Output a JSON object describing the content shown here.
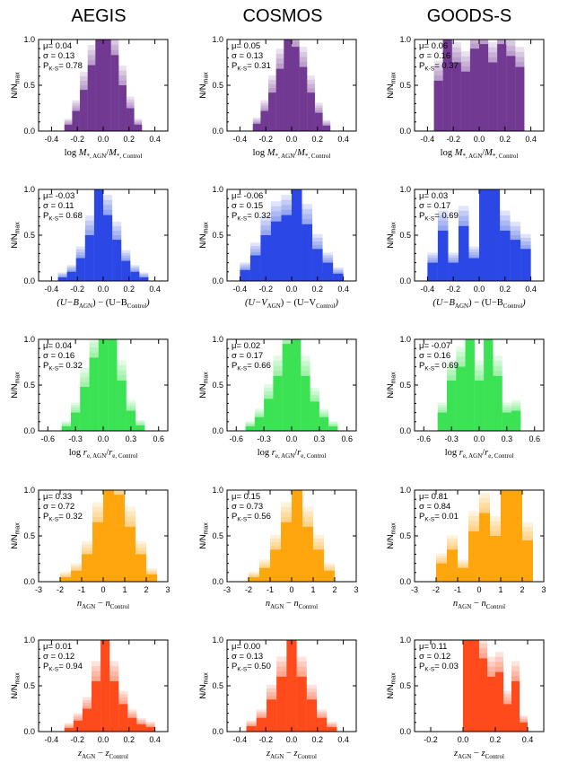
{
  "columns": [
    "AEGIS",
    "COSMOS",
    "GOODS-S"
  ],
  "y_axis_label": "N/N",
  "y_axis_label_sub": "max",
  "y_ticks": [
    "0.0",
    "0.5",
    "1.0"
  ],
  "stat_labels": {
    "mu": "μ=",
    "sigma": "σ =",
    "pks": "P",
    "pks_sub": "K-S",
    "pks_eq": "="
  },
  "colors": {
    "mass": "#6a2e8c",
    "color": "#1f3ee6",
    "size": "#2fe04a",
    "sersic": "#ffa000",
    "redshift": "#ff4010"
  },
  "chart_data": [
    {
      "type": "bar",
      "row": 0,
      "col": 0,
      "title": "AEGIS",
      "xlim": [
        -0.5,
        0.5
      ],
      "xticks": [
        -0.4,
        -0.2,
        0.0,
        0.2,
        0.4
      ],
      "xtick_labels": [
        "-0.4",
        "-0.2",
        "0.0",
        "0.2",
        "0.4"
      ],
      "ylim": [
        0,
        1
      ],
      "bin_edges": [
        -0.3,
        0.3
      ],
      "values": [
        0.07,
        0.22,
        0.45,
        0.72,
        1.0,
        1.0,
        0.83,
        0.5,
        0.25,
        0.07
      ],
      "color": "mass",
      "xlabel_parts": [
        "log ",
        "M",
        "*, AGN",
        "/",
        "M",
        "*, Control"
      ],
      "mu": "0.04",
      "sigma": "0.13",
      "pks": "0.78"
    },
    {
      "type": "bar",
      "row": 0,
      "col": 1,
      "title": "COSMOS",
      "xlim": [
        -0.5,
        0.5
      ],
      "xticks": [
        -0.4,
        -0.2,
        0.0,
        0.2,
        0.4
      ],
      "xtick_labels": [
        "-0.4",
        "-0.2",
        "0.0",
        "0.2",
        "0.4"
      ],
      "ylim": [
        0,
        1
      ],
      "bin_edges": [
        -0.3,
        0.3
      ],
      "values": [
        0.08,
        0.22,
        0.42,
        0.68,
        1.0,
        0.92,
        0.7,
        0.42,
        0.2,
        0.06
      ],
      "color": "mass",
      "xlabel_parts": [
        "log ",
        "M",
        "*, AGN",
        "/",
        "M",
        "*, Control"
      ],
      "mu": "0.05",
      "sigma": "0.13",
      "pks": "0.31"
    },
    {
      "type": "bar",
      "row": 0,
      "col": 2,
      "title": "GOODS-S",
      "xlim": [
        -0.5,
        0.5
      ],
      "xticks": [
        -0.4,
        -0.2,
        0.0,
        0.2,
        0.4
      ],
      "xtick_labels": [
        "-0.4",
        "-0.2",
        "0.0",
        "0.2",
        "0.4"
      ],
      "ylim": [
        0,
        1
      ],
      "bin_edges": [
        -0.35,
        0.35
      ],
      "values": [
        0.55,
        1.0,
        0.75,
        0.65,
        0.9,
        0.95,
        0.75,
        0.95,
        0.82,
        0.7
      ],
      "color": "mass",
      "xlabel_parts": [
        "log ",
        "M",
        "*, AGN",
        "/",
        "M",
        "*, Control"
      ],
      "mu": "0.06",
      "sigma": "0.16",
      "pks": "0.37"
    },
    {
      "type": "bar",
      "row": 1,
      "col": 0,
      "xlim": [
        -0.5,
        0.5
      ],
      "xticks": [
        -0.4,
        -0.2,
        0.0,
        0.2,
        0.4
      ],
      "xtick_labels": [
        "-0.4",
        "-0.2",
        "0.0",
        "0.2",
        "0.4"
      ],
      "ylim": [
        0,
        1
      ],
      "bin_edges": [
        -0.35,
        0.35
      ],
      "values": [
        0.04,
        0.1,
        0.25,
        0.5,
        1.0,
        0.72,
        0.45,
        0.22,
        0.1,
        0.04
      ],
      "color": "color",
      "xlabel_parts": [
        "(U−B",
        "AGN",
        ") − (U−B",
        "Control",
        ")"
      ],
      "mu": "-0.03",
      "sigma": "0.11",
      "pks": "0.68"
    },
    {
      "type": "bar",
      "row": 1,
      "col": 1,
      "xlim": [
        -0.5,
        0.5
      ],
      "xticks": [
        -0.4,
        -0.2,
        0.0,
        0.2,
        0.4
      ],
      "xtick_labels": [
        "-0.4",
        "-0.2",
        "0.0",
        "0.2",
        "0.4"
      ],
      "ylim": [
        0,
        1
      ],
      "bin_edges": [
        -0.4,
        0.4
      ],
      "values": [
        0.12,
        0.28,
        0.5,
        0.65,
        0.72,
        1.0,
        0.62,
        0.35,
        0.2,
        0.08
      ],
      "color": "color",
      "xlabel_parts": [
        "(U−V",
        "AGN",
        ") − (U−V",
        "Control",
        ")"
      ],
      "mu": "-0.06",
      "sigma": "0.15",
      "pks": "0.32"
    },
    {
      "type": "bar",
      "row": 1,
      "col": 2,
      "xlim": [
        -0.5,
        0.5
      ],
      "xticks": [
        -0.4,
        -0.2,
        0.0,
        0.2,
        0.4
      ],
      "xtick_labels": [
        "-0.4",
        "-0.2",
        "0.0",
        "0.2",
        "0.4"
      ],
      "ylim": [
        0,
        1
      ],
      "bin_edges": [
        -0.4,
        0.4
      ],
      "values": [
        0.2,
        0.55,
        0.2,
        0.6,
        0.25,
        1.0,
        1.0,
        0.55,
        0.45,
        0.35
      ],
      "color": "color",
      "xlabel_parts": [
        "(U−B",
        "AGN",
        ") − (U−B",
        "Control",
        ")"
      ],
      "mu": "0.03",
      "sigma": "0.17",
      "pks": "0.69"
    },
    {
      "type": "bar",
      "row": 2,
      "col": 0,
      "xlim": [
        -0.7,
        0.7
      ],
      "xticks": [
        -0.6,
        -0.3,
        0.0,
        0.3,
        0.6
      ],
      "xtick_labels": [
        "-0.6",
        "-0.3",
        "0.0",
        "0.3",
        "0.6"
      ],
      "ylim": [
        0,
        1
      ],
      "bin_edges": [
        -0.45,
        0.45
      ],
      "values": [
        0.05,
        0.2,
        0.48,
        0.8,
        1.0,
        1.0,
        0.55,
        0.22,
        0.06
      ],
      "color": "size",
      "xlabel_parts": [
        "log ",
        "r",
        "e, AGN",
        "/",
        "r",
        "e, Control"
      ],
      "mu": "0.04",
      "sigma": "0.16",
      "pks": "0.32"
    },
    {
      "type": "bar",
      "row": 2,
      "col": 1,
      "xlim": [
        -0.7,
        0.7
      ],
      "xticks": [
        -0.6,
        -0.3,
        0.0,
        0.3,
        0.6
      ],
      "xtick_labels": [
        "-0.6",
        "-0.3",
        "0.0",
        "0.3",
        "0.6"
      ],
      "ylim": [
        0,
        1
      ],
      "bin_edges": [
        -0.5,
        0.5
      ],
      "values": [
        0.05,
        0.15,
        0.35,
        0.6,
        0.95,
        1.0,
        0.6,
        0.32,
        0.15,
        0.05
      ],
      "color": "size",
      "xlabel_parts": [
        "log ",
        "r",
        "e, AGN",
        "/",
        "r",
        "e, Control"
      ],
      "mu": "0.02",
      "sigma": "0.17",
      "pks": "0.66"
    },
    {
      "type": "bar",
      "row": 2,
      "col": 2,
      "xlim": [
        -0.7,
        0.7
      ],
      "xticks": [
        -0.6,
        -0.3,
        0.0,
        0.3,
        0.6
      ],
      "xtick_labels": [
        "-0.6",
        "-0.3",
        "0.0",
        "0.3",
        "0.6"
      ],
      "ylim": [
        0,
        1
      ],
      "bin_edges": [
        -0.45,
        0.45
      ],
      "values": [
        0.2,
        0.55,
        0.7,
        1.0,
        0.55,
        1.0,
        0.6,
        0.2,
        0.22
      ],
      "color": "size",
      "xlabel_parts": [
        "log ",
        "r",
        "e, AGN",
        "/",
        "r",
        "e, Control"
      ],
      "mu": "-0.07",
      "sigma": "0.16",
      "pks": "0.69"
    },
    {
      "type": "bar",
      "row": 3,
      "col": 0,
      "xlim": [
        -3,
        3
      ],
      "xticks": [
        -3,
        -2,
        -1,
        0,
        1,
        2,
        3
      ],
      "xtick_labels": [
        "-3",
        "-2",
        "-1",
        "0",
        "1",
        "2",
        "3"
      ],
      "ylim": [
        0,
        1
      ],
      "bin_edges": [
        -2.0,
        2.5
      ],
      "values": [
        0.05,
        0.12,
        0.3,
        0.65,
        1.0,
        0.95,
        0.6,
        0.3,
        0.08
      ],
      "color": "sersic",
      "xlabel_parts": [
        "n",
        "AGN",
        " − ",
        "n",
        "Control"
      ],
      "mu": "0.33",
      "sigma": "0.72",
      "pks": "0.32"
    },
    {
      "type": "bar",
      "row": 3,
      "col": 1,
      "xlim": [
        -3,
        3
      ],
      "xticks": [
        -3,
        -2,
        -1,
        0,
        1,
        2,
        3
      ],
      "xtick_labels": [
        "-3",
        "-2",
        "-1",
        "0",
        "1",
        "2",
        "3"
      ],
      "ylim": [
        0,
        1
      ],
      "bin_edges": [
        -2.0,
        2.0
      ],
      "values": [
        0.05,
        0.15,
        0.35,
        0.65,
        1.0,
        0.6,
        0.35,
        0.12
      ],
      "color": "sersic",
      "xlabel_parts": [
        "n",
        "AGN",
        " − ",
        "n",
        "Control"
      ],
      "mu": "0.15",
      "sigma": "0.73",
      "pks": "0.56"
    },
    {
      "type": "bar",
      "row": 3,
      "col": 2,
      "xlim": [
        -3,
        3
      ],
      "xticks": [
        -3,
        -2,
        -1,
        0,
        1,
        2,
        3
      ],
      "xtick_labels": [
        "-3",
        "-2",
        "-1",
        "0",
        "1",
        "2",
        "3"
      ],
      "ylim": [
        0,
        1
      ],
      "bin_edges": [
        -2.0,
        2.5
      ],
      "values": [
        0.2,
        0.35,
        0.15,
        0.55,
        0.75,
        0.5,
        1.0,
        1.0,
        0.45
      ],
      "color": "sersic",
      "xlabel_parts": [
        "n",
        "AGN",
        " − ",
        "n",
        "Control"
      ],
      "mu": "0.81",
      "sigma": "0.84",
      "pks": "0.01"
    },
    {
      "type": "bar",
      "row": 4,
      "col": 0,
      "xlim": [
        -0.5,
        0.5
      ],
      "xticks": [
        -0.4,
        -0.2,
        0.0,
        0.2,
        0.4
      ],
      "xtick_labels": [
        "-0.4",
        "-0.2",
        "0.0",
        "0.2",
        "0.4"
      ],
      "ylim": [
        0,
        1
      ],
      "bin_edges": [
        -0.3,
        0.4
      ],
      "values": [
        0.04,
        0.12,
        0.25,
        0.55,
        1.0,
        0.55,
        0.3,
        0.15,
        0.08,
        0.05
      ],
      "color": "redshift",
      "xlabel_parts": [
        "z",
        "AGN",
        " − ",
        "z",
        "Control"
      ],
      "mu": "0.01",
      "sigma": "0.12",
      "pks": "0.94"
    },
    {
      "type": "bar",
      "row": 4,
      "col": 1,
      "xlim": [
        -0.5,
        0.5
      ],
      "xticks": [
        -0.4,
        -0.2,
        0.0,
        0.2,
        0.4
      ],
      "xtick_labels": [
        "-0.4",
        "-0.2",
        "0.0",
        "0.2",
        "0.4"
      ],
      "ylim": [
        0,
        1
      ],
      "bin_edges": [
        -0.35,
        0.35
      ],
      "values": [
        0.06,
        0.15,
        0.35,
        0.6,
        1.0,
        0.6,
        0.35,
        0.15,
        0.05
      ],
      "color": "redshift",
      "xlabel_parts": [
        "z",
        "AGN",
        " − ",
        "z",
        "Control"
      ],
      "mu": "0.00",
      "sigma": "0.13",
      "pks": "0.50"
    },
    {
      "type": "bar",
      "row": 4,
      "col": 2,
      "xlim": [
        -0.3,
        0.5
      ],
      "xticks": [
        -0.2,
        0.0,
        0.2,
        0.4
      ],
      "xtick_labels": [
        "-0.2",
        "0.0",
        "0.2",
        "0.4"
      ],
      "ylim": [
        0,
        1
      ],
      "bin_edges": [
        0.0,
        0.4
      ],
      "values": [
        1.0,
        1.0,
        0.8,
        0.6,
        0.65,
        0.3,
        0.55,
        0.1
      ],
      "color": "redshift",
      "xlabel_parts": [
        "z",
        "AGN",
        " − ",
        "z",
        "Control"
      ],
      "mu": "0.11",
      "sigma": "0.12",
      "pks": "0.03"
    }
  ]
}
